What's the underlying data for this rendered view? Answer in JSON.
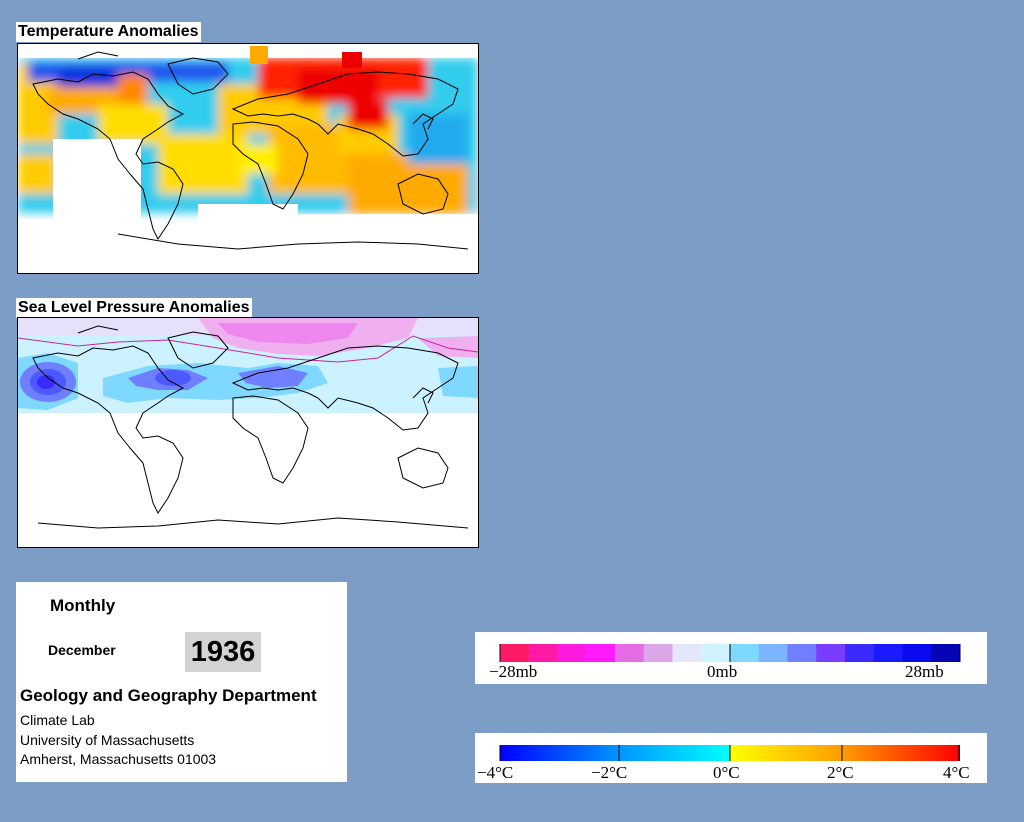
{
  "temperature_map": {
    "title": "Temperature Anomalies"
  },
  "pressure_map": {
    "title": "Sea Level Pressure Anomalies"
  },
  "info": {
    "period": "Monthly",
    "month": "December",
    "year": "1936",
    "department": "Geology and Geography Department",
    "line1": "Climate Lab",
    "line2": "University of Massachusetts",
    "line3": "Amherst, Massachusetts 01003"
  },
  "pressure_legend": {
    "labels": [
      "−28mb",
      "0mb",
      "28mb"
    ],
    "colors": [
      "#ff1a66",
      "#ff1aa6",
      "#ff1adf",
      "#ff1aff",
      "#e66ce6",
      "#dba7e9",
      "#e6e6fa",
      "#d0f4ff",
      "#7fd8ff",
      "#7bb4ff",
      "#6f7fff",
      "#7a3cff",
      "#3a2aff",
      "#1a1aff",
      "#0a0af0",
      "#0505b4"
    ]
  },
  "temperature_legend": {
    "labels": [
      "−4°C",
      "−2°C",
      "0°C",
      "2°C",
      "4°C"
    ],
    "colors": [
      "#0000ff",
      "#00c8ff",
      "#ffff00",
      "#ff0000"
    ]
  }
}
